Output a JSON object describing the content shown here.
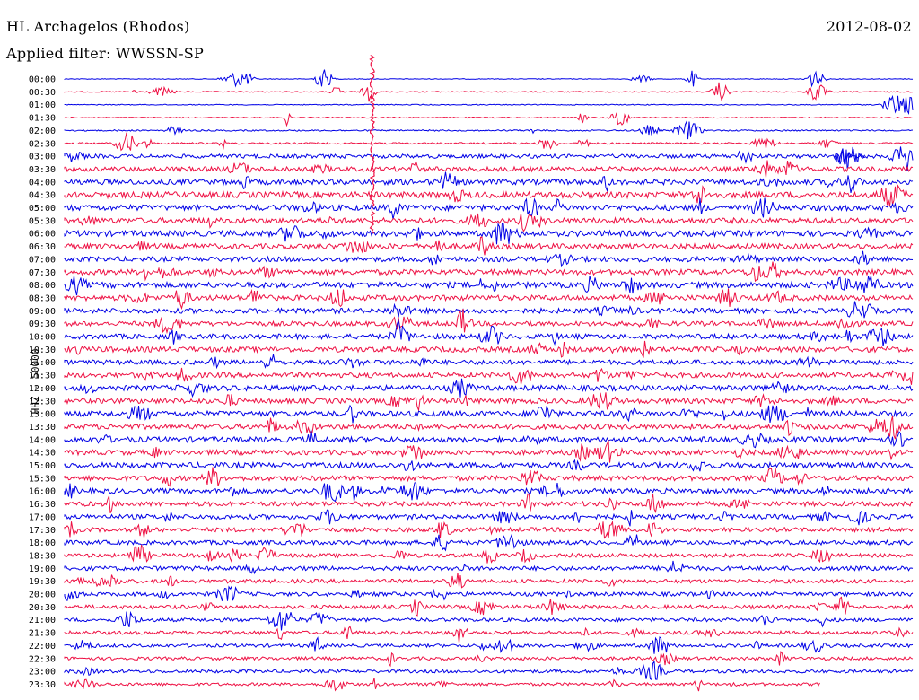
{
  "header": {
    "station": "HL Archagelos (Rhodos)",
    "filter": "Applied filter: WWSSN-SP",
    "date": "2012-08-02"
  },
  "chart_data": {
    "type": "helicorder",
    "ylabel": "HHZ - 50000",
    "row_labels": [
      "00:00",
      "00:30",
      "01:00",
      "01:30",
      "02:00",
      "02:30",
      "03:00",
      "03:30",
      "04:00",
      "04:30",
      "05:00",
      "05:30",
      "06:00",
      "06:30",
      "07:00",
      "07:30",
      "08:00",
      "08:30",
      "09:00",
      "09:30",
      "10:00",
      "10:30",
      "11:00",
      "11:30",
      "12:00",
      "12:30",
      "13:00",
      "13:30",
      "14:00",
      "14:30",
      "15:00",
      "15:30",
      "16:00",
      "16:30",
      "17:00",
      "17:30",
      "18:00",
      "18:30",
      "19:00",
      "19:30",
      "20:00",
      "20:30",
      "21:00",
      "21:30",
      "22:00",
      "22:30",
      "23:00",
      "23:30"
    ],
    "colors": [
      "#0000e6",
      "#ee1144"
    ],
    "noise_level": [
      0.4,
      0.6,
      0.5,
      0.6,
      0.8,
      1.0,
      2.2,
      2.6,
      3.0,
      3.4,
      3.2,
      3.0,
      3.2,
      3.0,
      2.8,
      3.0,
      3.2,
      3.0,
      2.8,
      2.6,
      2.8,
      3.0,
      2.6,
      2.8,
      3.0,
      2.8,
      3.0,
      2.8,
      3.0,
      2.8,
      3.0,
      2.8,
      2.8,
      2.6,
      2.6,
      2.4,
      2.4,
      2.2,
      2.4,
      2.2,
      2.2,
      2.2,
      2.0,
      2.0,
      1.8,
      1.8,
      1.8,
      1.6
    ],
    "end_fraction": 0.89
  }
}
